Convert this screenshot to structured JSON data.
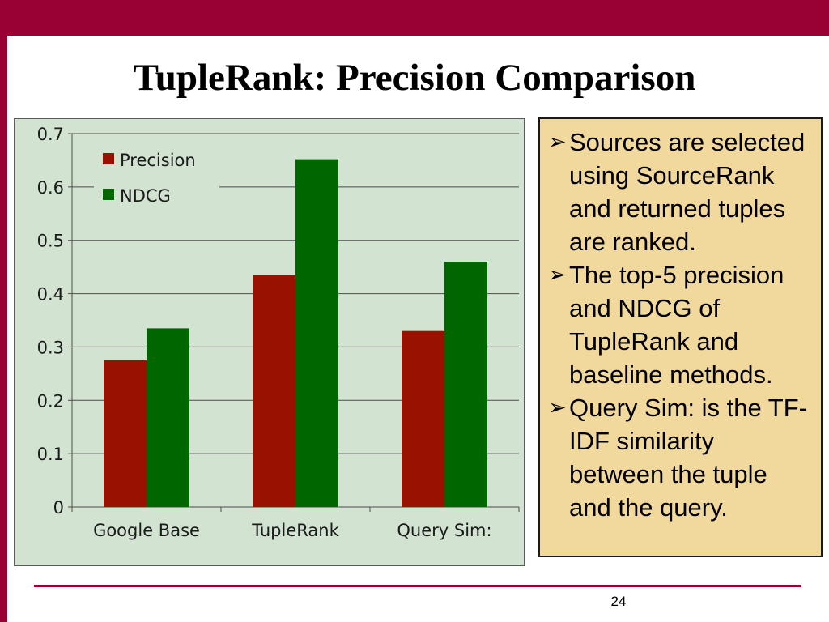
{
  "slide": {
    "title": "TupleRank: Precision Comparison",
    "page_number": "24"
  },
  "notes": [
    {
      "bullet": "arrow-bullet-icon",
      "text": "Sources are selected using SourceRank and returned tuples are ranked."
    },
    {
      "bullet": "arrow-bullet-icon",
      "text": "The top-5 precision and NDCG of TupleRank and baseline methods."
    },
    {
      "bullet": "arrow-bullet-icon",
      "text": "Query Sim: is the TF-IDF similarity between the tuple and the query."
    }
  ],
  "colors": {
    "brand": "#990033",
    "chart_background": "#d2e3d2",
    "notes_background": "#f1d89c"
  },
  "chart_data": {
    "type": "bar",
    "categories": [
      "Google Base",
      "TupleRank",
      "Query Sim:"
    ],
    "series": [
      {
        "name": "Precision",
        "color": "#991100",
        "values": [
          0.275,
          0.435,
          0.33
        ]
      },
      {
        "name": "NDCG",
        "color": "#006600",
        "values": [
          0.335,
          0.652,
          0.46
        ]
      }
    ],
    "yticks": [
      "0",
      "0.1",
      "0.2",
      "0.3",
      "0.4",
      "0.5",
      "0.6",
      "0.7"
    ],
    "ylim": [
      0,
      0.7
    ],
    "grid": true,
    "legend": "top-left"
  }
}
